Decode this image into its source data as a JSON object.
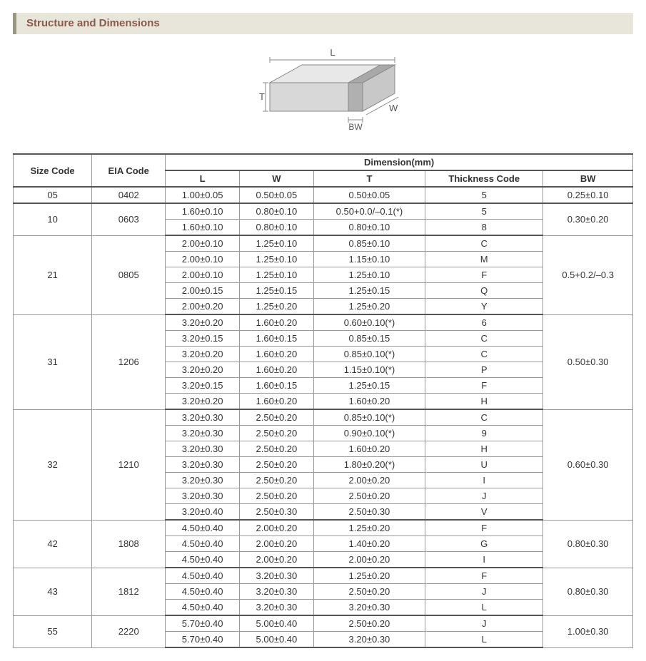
{
  "header": {
    "title": "Structure and Dimensions"
  },
  "diagram": {
    "labels": {
      "L": "L",
      "W": "W",
      "T": "T",
      "BW": "BW"
    },
    "stroke": "#888888",
    "fill_top": "#e8e8e8",
    "fill_front": "#d8d8d8",
    "fill_side": "#c8c8c8",
    "bw_fill": "#b0b0b0"
  },
  "table": {
    "header": {
      "size_code": "Size Code",
      "eia_code": "EIA Code",
      "dimension": "Dimension(mm)",
      "L": "L",
      "W": "W",
      "T": "T",
      "thickness_code": "Thickness  Code",
      "BW": "BW"
    },
    "groups": [
      {
        "size_code": "05",
        "eia_code": "0402",
        "bw": "0.25±0.10",
        "rows": [
          {
            "L": "1.00±0.05",
            "W": "0.50±0.05",
            "T": "0.50±0.05",
            "TC": "5"
          }
        ]
      },
      {
        "size_code": "10",
        "eia_code": "0603",
        "bw": "0.30±0.20",
        "rows": [
          {
            "L": "1.60±0.10",
            "W": "0.80±0.10",
            "T": "0.50+0.0/–0.1(*)",
            "TC": "5"
          },
          {
            "L": "1.60±0.10",
            "W": "0.80±0.10",
            "T": "0.80±0.10",
            "TC": "8"
          }
        ]
      },
      {
        "size_code": "21",
        "eia_code": "0805",
        "bw": "0.5+0.2/–0.3",
        "rows": [
          {
            "L": "2.00±0.10",
            "W": "1.25±0.10",
            "T": "0.85±0.10",
            "TC": "C"
          },
          {
            "L": "2.00±0.10",
            "W": "1.25±0.10",
            "T": "1.15±0.10",
            "TC": "M"
          },
          {
            "L": "2.00±0.10",
            "W": "1.25±0.10",
            "T": "1.25±0.10",
            "TC": "F"
          },
          {
            "L": "2.00±0.15",
            "W": "1.25±0.15",
            "T": "1.25±0.15",
            "TC": "Q"
          },
          {
            "L": "2.00±0.20",
            "W": "1.25±0.20",
            "T": "1.25±0.20",
            "TC": "Y"
          }
        ]
      },
      {
        "size_code": "31",
        "eia_code": "1206",
        "bw": "0.50±0.30",
        "rows": [
          {
            "L": "3.20±0.20",
            "W": "1.60±0.20",
            "T": "0.60±0.10(*)",
            "TC": "6"
          },
          {
            "L": "3.20±0.15",
            "W": "1.60±0.15",
            "T": "0.85±0.15",
            "TC": "C"
          },
          {
            "L": "3.20±0.20",
            "W": "1.60±0.20",
            "T": "0.85±0.10(*)",
            "TC": "C"
          },
          {
            "L": "3.20±0.20",
            "W": "1.60±0.20",
            "T": "1.15±0.10(*)",
            "TC": "P"
          },
          {
            "L": "3.20±0.15",
            "W": "1.60±0.15",
            "T": "1.25±0.15",
            "TC": "F"
          },
          {
            "L": "3.20±0.20",
            "W": "1.60±0.20",
            "T": "1.60±0.20",
            "TC": "H"
          }
        ]
      },
      {
        "size_code": "32",
        "eia_code": "1210",
        "bw": "0.60±0.30",
        "rows": [
          {
            "L": "3.20±0.30",
            "W": "2.50±0.20",
            "T": "0.85±0.10(*)",
            "TC": "C"
          },
          {
            "L": "3.20±0.30",
            "W": "2.50±0.20",
            "T": "0.90±0.10(*)",
            "TC": "9"
          },
          {
            "L": "3.20±0.30",
            "W": "2.50±0.20",
            "T": "1.60±0.20",
            "TC": "H"
          },
          {
            "L": "3.20±0.30",
            "W": "2.50±0.20",
            "T": "1.80±0.20(*)",
            "TC": "U"
          },
          {
            "L": "3.20±0.30",
            "W": "2.50±0.20",
            "T": "2.00±0.20",
            "TC": "I"
          },
          {
            "L": "3.20±0.30",
            "W": "2.50±0.20",
            "T": "2.50±0.20",
            "TC": "J"
          },
          {
            "L": "3.20±0.40",
            "W": "2.50±0.30",
            "T": "2.50±0.30",
            "TC": "V"
          }
        ]
      },
      {
        "size_code": "42",
        "eia_code": "1808",
        "bw": "0.80±0.30",
        "rows": [
          {
            "L": "4.50±0.40",
            "W": "2.00±0.20",
            "T": "1.25±0.20",
            "TC": "F"
          },
          {
            "L": "4.50±0.40",
            "W": "2.00±0.20",
            "T": "1.40±0.20",
            "TC": "G"
          },
          {
            "L": "4.50±0.40",
            "W": "2.00±0.20",
            "T": "2.00±0.20",
            "TC": "I"
          }
        ]
      },
      {
        "size_code": "43",
        "eia_code": "1812",
        "bw": "0.80±0.30",
        "rows": [
          {
            "L": "4.50±0.40",
            "W": "3.20±0.30",
            "T": "1.25±0.20",
            "TC": "F"
          },
          {
            "L": "4.50±0.40",
            "W": "3.20±0.30",
            "T": "2.50±0.20",
            "TC": "J"
          },
          {
            "L": "4.50±0.40",
            "W": "3.20±0.30",
            "T": "3.20±0.30",
            "TC": "L"
          }
        ]
      },
      {
        "size_code": "55",
        "eia_code": "2220",
        "bw": "1.00±0.30",
        "rows": [
          {
            "L": "5.70±0.40",
            "W": "5.00±0.40",
            "T": "2.50±0.20",
            "TC": "J"
          },
          {
            "L": "5.70±0.40",
            "W": "5.00±0.40",
            "T": "3.20±0.30",
            "TC": "L"
          }
        ]
      }
    ]
  }
}
